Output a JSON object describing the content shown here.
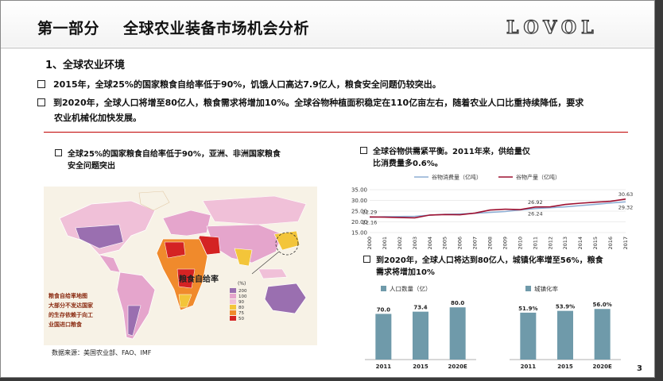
{
  "header": {
    "part": "第一部分",
    "title": "全球农业装备市场机会分析",
    "logo": "LOVOL"
  },
  "section": {
    "heading": "1、全球农业环境"
  },
  "bullets": [
    "2015年，全球25%的国家粮食自给率低于90%，饥饿人口高达7.9亿人，粮食安全问题仍较突出。",
    "到2020年，全球人口将增至80亿人，粮食需求将增加10%。全球谷物种植面积稳定在110亿亩左右，随着农业人口比重持续降低，要求",
    "农业机械化加快发展。"
  ],
  "map_panel": {
    "caption_line1": "全球25%的国家粮食自给率低于90%，亚洲、非洲国家粮食",
    "caption_line2": "安全问题突出",
    "map_label": "粮食自给率",
    "legend_unit": "(%)",
    "legend_values": [
      "200",
      "100",
      "90",
      "80",
      "75",
      "50"
    ],
    "side_text": [
      "粮食自给率地图",
      "大部分不发达国家",
      "的生存依赖于向工",
      "业国进口粮食"
    ],
    "source": "数据来源：美国农业部、FAO、IMF",
    "colors": {
      "ocean": "#f7f2e6",
      "land_high": "#9a6fb0",
      "land_mid": "#e5a5cc",
      "land_ok": "#f0c0d8",
      "low": "#f3c53a",
      "lower": "#f08a2c",
      "lowest": "#d42323"
    }
  },
  "grain_panel": {
    "caption_line1": "全球谷物供需紧平衡。2011年来，供给量仅",
    "caption_line2": "比消费量多0.6%。"
  },
  "population_panel": {
    "caption_line1": "到2020年，全球人口将达到80亿人，城镇化率增至56%，粮食",
    "caption_line2": "需求将增加10%"
  },
  "page_number": "3",
  "chart_data": [
    {
      "type": "line",
      "x": [
        "2000",
        "2001",
        "2002",
        "2003",
        "2004",
        "2005",
        "2006",
        "2007",
        "2008",
        "2009",
        "2010",
        "2011",
        "2012",
        "2013",
        "2014",
        "2015",
        "2016",
        "2017"
      ],
      "ylim": [
        15,
        35
      ],
      "yticks": [
        "35.00",
        "30.00",
        "25.00",
        "20.00",
        "15.00"
      ],
      "series": [
        {
          "name": "谷物消费量（亿吨）",
          "color": "#8eaed4",
          "values": [
            22.16,
            22.4,
            22.5,
            22.6,
            23.1,
            23.5,
            23.7,
            24.0,
            24.4,
            24.8,
            25.6,
            26.24,
            26.6,
            27.0,
            27.6,
            28.2,
            28.8,
            29.32
          ]
        },
        {
          "name": "谷物产量（亿吨）",
          "color": "#9e1030",
          "values": [
            22.29,
            22.2,
            22.0,
            21.9,
            23.2,
            23.4,
            23.3,
            24.1,
            25.5,
            25.9,
            25.7,
            26.92,
            27.0,
            28.1,
            28.7,
            29.2,
            29.6,
            30.63
          ]
        }
      ],
      "data_labels": [
        {
          "series": 1,
          "index": 0,
          "text": "22.29"
        },
        {
          "series": 0,
          "index": 0,
          "text": "22.16"
        },
        {
          "series": 1,
          "index": 11,
          "text": "26.92"
        },
        {
          "series": 0,
          "index": 11,
          "text": "26.24"
        },
        {
          "series": 1,
          "index": 17,
          "text": "30.63"
        },
        {
          "series": 0,
          "index": 17,
          "text": "29.32"
        }
      ]
    },
    {
      "type": "bar",
      "categories": [
        "2011",
        "2015",
        "2020E"
      ],
      "series": [
        {
          "name": "人口数量（亿）",
          "values": [
            70.0,
            73.4,
            80.0
          ]
        }
      ],
      "value_labels": [
        "70.0",
        "73.4",
        "80.0"
      ],
      "ylim": [
        0,
        90
      ],
      "color": "#6f9aaa"
    },
    {
      "type": "bar",
      "categories": [
        "2011",
        "2015",
        "2020E"
      ],
      "series": [
        {
          "name": "城镇化率",
          "values": [
            51.9,
            53.9,
            56.0
          ]
        }
      ],
      "value_labels": [
        "51.9%",
        "53.9%",
        "56.0%"
      ],
      "ylim": [
        0,
        65
      ],
      "color": "#6f9aaa"
    }
  ]
}
